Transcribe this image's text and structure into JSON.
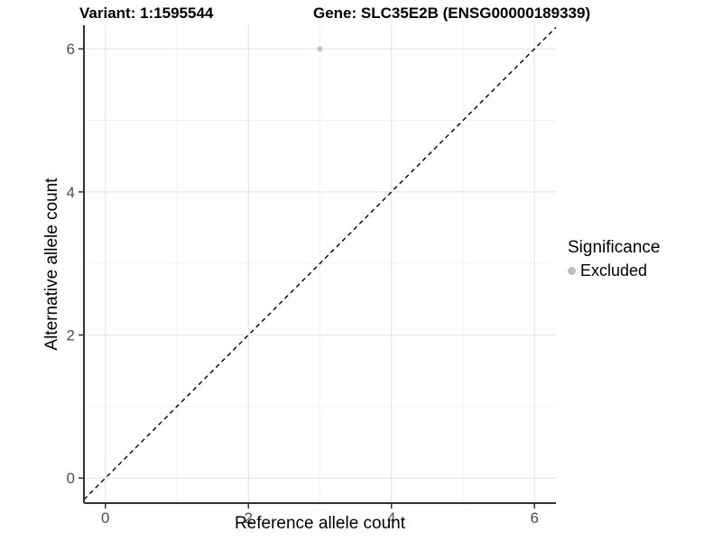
{
  "titles": {
    "variant": "Variant: 1:1595544",
    "gene": "Gene: SLC35E2B (ENSG00000189339)"
  },
  "legend": {
    "title": "Significance",
    "items": [
      {
        "label": "Excluded",
        "color": "#bebebe",
        "key_icon": "circle-dot-icon"
      }
    ]
  },
  "axes": {
    "xlabel": "Reference allele count",
    "ylabel": "Alternative allele count"
  },
  "colors": {
    "background": "#ffffff",
    "axis_line": "#333333",
    "tick_label": "#4d4d4d",
    "grid_major": "#e5e5e5",
    "grid_minor": "#f2f2f2",
    "reference_line": "#000000",
    "point": "#bebebe"
  },
  "chart_data": {
    "type": "scatter",
    "title_left": "Variant: 1:1595544",
    "title_right": "Gene: SLC35E2B (ENSG00000189339)",
    "xlabel": "Reference allele count",
    "ylabel": "Alternative allele count",
    "xlim": [
      -0.3,
      6.3
    ],
    "ylim": [
      -0.35,
      6.33
    ],
    "x_ticks": [
      0,
      2,
      4,
      6
    ],
    "y_ticks": [
      0,
      2,
      4,
      6
    ],
    "x_minor_ticks": [
      1,
      3,
      5
    ],
    "y_minor_ticks": [
      1,
      3,
      5
    ],
    "grid": true,
    "legend_position": "right",
    "series": [
      {
        "name": "Excluded",
        "color": "#bebebe",
        "marker": "circle",
        "points": [
          {
            "x": 3,
            "y": 6
          }
        ]
      }
    ],
    "reference_line": {
      "type": "abline",
      "slope": 1,
      "intercept": 0,
      "style": "dashed",
      "color": "#000000"
    }
  }
}
